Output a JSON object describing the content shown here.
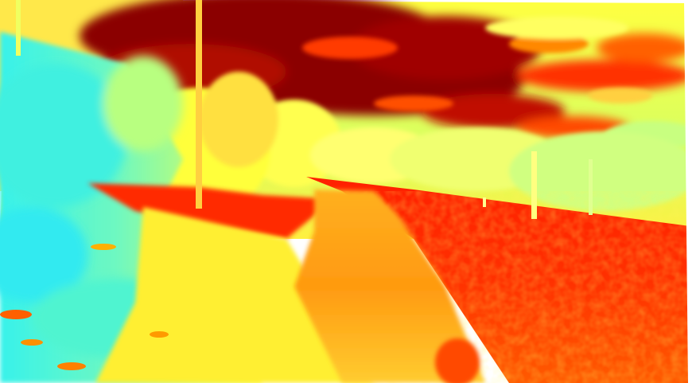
{
  "image": {
    "kind": "false-color jet-colormap photograph of a park path with trees and sky",
    "colormap": [
      "#00ffff",
      "#7fff7f",
      "#ffff00",
      "#ff7f00",
      "#ff0000",
      "#7f0000"
    ],
    "palette": {
      "dark_red": "#8b0000",
      "red": "#ff2a00",
      "orange": "#ff8c00",
      "yellow": "#ffff3a",
      "yellow_green": "#d8ff5a",
      "cyan": "#39f0e6",
      "frame_white": "#ffffff"
    }
  }
}
